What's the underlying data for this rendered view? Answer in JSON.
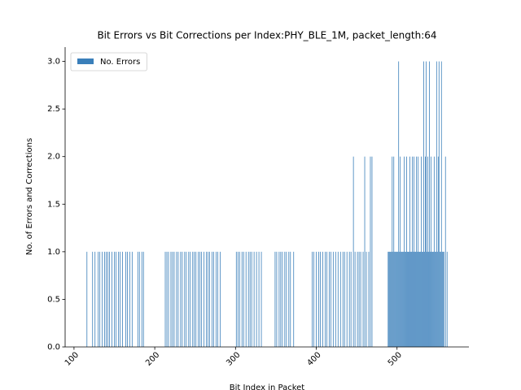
{
  "chart_data": {
    "type": "bar",
    "title": "Bit Errors vs Bit Corrections per Index:PHY_BLE_1M, packet_length:64",
    "x_label": "Bit Index in Packet",
    "y_label": "No. of Errors and Corrections",
    "legend": "upper left",
    "x": [
      116,
      123,
      126,
      130,
      132,
      135,
      138,
      140,
      142,
      144,
      147,
      150,
      152,
      155,
      157,
      160,
      164,
      166,
      169,
      172,
      179,
      181,
      184,
      186,
      213,
      215,
      217,
      220,
      222,
      224,
      227,
      229,
      232,
      234,
      237,
      239,
      242,
      244,
      247,
      249,
      251,
      254,
      256,
      258,
      261,
      264,
      266,
      268,
      271,
      273,
      276,
      278,
      281,
      301,
      303,
      305,
      308,
      310,
      313,
      316,
      318,
      320,
      323,
      326,
      329,
      332,
      349,
      351,
      354,
      356,
      358,
      361,
      363,
      366,
      368,
      372,
      395,
      397,
      400,
      403,
      405,
      408,
      411,
      413,
      416,
      418,
      421,
      424,
      427,
      430,
      433,
      435,
      438,
      441,
      443,
      446,
      448,
      451,
      453,
      455,
      458,
      460,
      462,
      465,
      467,
      469,
      489,
      490,
      491,
      492,
      493,
      494,
      495,
      496,
      497,
      498,
      499,
      500,
      501,
      502,
      503,
      504,
      505,
      506,
      507,
      508,
      509,
      510,
      511,
      512,
      513,
      514,
      515,
      516,
      517,
      518,
      519,
      520,
      521,
      522,
      523,
      524,
      525,
      526,
      527,
      528,
      529,
      530,
      531,
      532,
      533,
      534,
      535,
      536,
      537,
      538,
      539,
      540,
      541,
      542,
      543,
      544,
      545,
      546,
      547,
      548,
      549,
      550,
      551,
      552,
      553,
      554,
      555,
      556,
      557,
      558,
      560,
      562
    ],
    "series": [
      {
        "name": "No. Errors",
        "color": "#3a7fba",
        "values": [
          1,
          1,
          1,
          1,
          1,
          1,
          1,
          1,
          1,
          1,
          1,
          1,
          1,
          1,
          1,
          1,
          1,
          1,
          1,
          1,
          1,
          1,
          1,
          1,
          1,
          1,
          1,
          1,
          1,
          1,
          1,
          1,
          1,
          1,
          1,
          1,
          1,
          1,
          1,
          1,
          1,
          1,
          1,
          1,
          1,
          1,
          1,
          1,
          1,
          1,
          1,
          1,
          1,
          1,
          1,
          1,
          1,
          1,
          1,
          1,
          1,
          1,
          1,
          1,
          1,
          1,
          1,
          1,
          1,
          1,
          1,
          1,
          1,
          1,
          1,
          1,
          1,
          1,
          1,
          1,
          1,
          1,
          1,
          1,
          1,
          1,
          1,
          1,
          1,
          1,
          1,
          1,
          1,
          1,
          1,
          2,
          1,
          1,
          1,
          1,
          1,
          2,
          1,
          1,
          2,
          2,
          1,
          1,
          1,
          1,
          1,
          2,
          1,
          2,
          1,
          1,
          1,
          1,
          1,
          3,
          1,
          2,
          1,
          1,
          1,
          1,
          2,
          1,
          1,
          2,
          1,
          1,
          1,
          2,
          1,
          1,
          2,
          1,
          2,
          1,
          1,
          2,
          1,
          2,
          1,
          1,
          1,
          2,
          1,
          1,
          3,
          1,
          2,
          3,
          1,
          2,
          1,
          3,
          1,
          2,
          1,
          1,
          1,
          2,
          1,
          1,
          3,
          1,
          2,
          3,
          1,
          1,
          3,
          1,
          1,
          1,
          2,
          1
        ]
      }
    ],
    "xlim": [
      89,
      589
    ],
    "ylim": [
      0,
      3.15
    ],
    "xticks": [
      100,
      200,
      300,
      400,
      500
    ],
    "yticks": [
      {
        "value": 0,
        "label": "0.0"
      },
      {
        "value": 0.5,
        "label": "0.5"
      },
      {
        "value": 1,
        "label": "1.0"
      },
      {
        "value": 1.5,
        "label": "1.5"
      },
      {
        "value": 2,
        "label": "2.0"
      },
      {
        "value": 2.5,
        "label": "2.5"
      },
      {
        "value": 3,
        "label": "3.0"
      }
    ]
  }
}
